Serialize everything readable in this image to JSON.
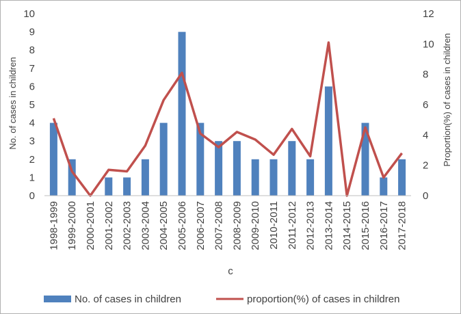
{
  "chart_data": {
    "type": "bar",
    "categories": [
      "1998-1999",
      "1999-2000",
      "2000-2001",
      "2001-2002",
      "2002-2003",
      "2003-2004",
      "2004-2005",
      "2005-2006",
      "2006-2007",
      "2007-2008",
      "2008-2009",
      "2009-2010",
      "2010-2011",
      "2011-2012",
      "2012-2013",
      "2013-2014",
      "2014-2015",
      "2015-2016",
      "2016-2017",
      "2017-2018"
    ],
    "series": [
      {
        "name": "No. of cases in children",
        "type": "bar",
        "axis": "left",
        "color": "#4f81bd",
        "values": [
          4,
          2,
          0,
          1,
          1,
          2,
          4,
          9,
          4,
          3,
          3,
          2,
          2,
          3,
          2,
          6,
          0,
          4,
          1,
          2
        ]
      },
      {
        "name": "proportion(%) of cases in children",
        "type": "line",
        "axis": "right",
        "color": "#c0504d",
        "values": [
          5.1,
          1.6,
          0.0,
          1.7,
          1.6,
          3.3,
          6.3,
          8.1,
          4.1,
          3.2,
          4.2,
          3.7,
          2.7,
          4.4,
          2.6,
          10.1,
          0.0,
          4.5,
          1.2,
          2.8
        ]
      }
    ],
    "xlabel": "c",
    "ylabel": "No. of cases in children",
    "y2label": "Proportion(%) of cases in children",
    "ylim": [
      0,
      10
    ],
    "y2lim": [
      0,
      12
    ],
    "yticks": [
      "0",
      "1",
      "2",
      "3",
      "4",
      "5",
      "6",
      "7",
      "8",
      "9",
      "10"
    ],
    "y2ticks": [
      "0",
      "2",
      "4",
      "6",
      "8",
      "10",
      "12"
    ],
    "grid": false,
    "legend_position": "bottom"
  }
}
